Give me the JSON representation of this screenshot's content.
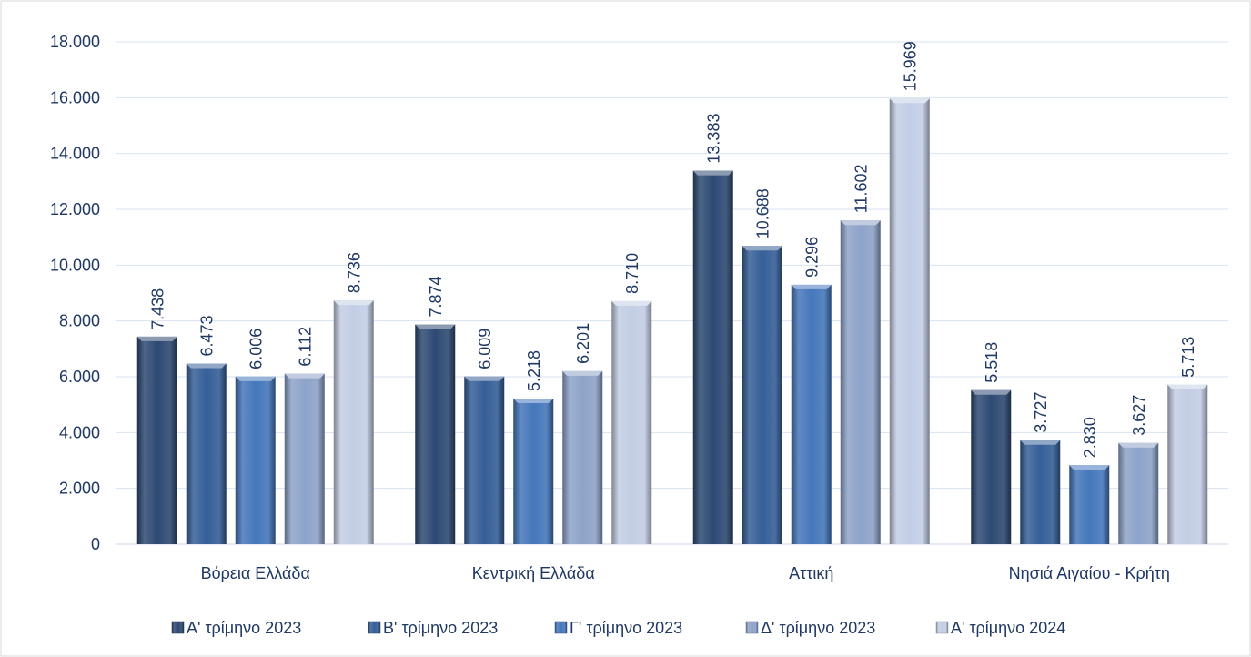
{
  "chart_data": {
    "type": "bar",
    "title": "",
    "xlabel": "",
    "ylabel": "",
    "categories": [
      "Βόρεια Ελλάδα",
      "Κεντρική Ελλάδα",
      "Αττική",
      "Νησιά Αιγαίου - Κρήτη"
    ],
    "series": [
      {
        "name": "Α' τρίμηνο 2023",
        "values": [
          7438,
          7874,
          13383,
          5518
        ],
        "labels": [
          "7.438",
          "7.874",
          "13.383",
          "5.518"
        ],
        "color": "#2e4a73"
      },
      {
        "name": "Β' τρίμηνο 2023",
        "values": [
          6473,
          6009,
          10688,
          3727
        ],
        "labels": [
          "6.473",
          "6.009",
          "10.688",
          "3.727"
        ],
        "color": "#365f98"
      },
      {
        "name": "Γ' τρίμηνο 2023",
        "values": [
          6006,
          5218,
          9296,
          2830
        ],
        "labels": [
          "6.006",
          "5.218",
          "9.296",
          "2.830"
        ],
        "color": "#4577bb"
      },
      {
        "name": "Δ' τρίμηνο 2023",
        "values": [
          6112,
          6201,
          11602,
          3627
        ],
        "labels": [
          "6.112",
          "6.201",
          "11.602",
          "3.627"
        ],
        "color": "#8ea3c9"
      },
      {
        "name": "Α' τρίμηνο 2024",
        "values": [
          8736,
          8710,
          15969,
          5713
        ],
        "labels": [
          "8.736",
          "8.710",
          "15.969",
          "5.713"
        ],
        "color": "#c3cde4"
      }
    ],
    "yticks": [
      0,
      2000,
      4000,
      6000,
      8000,
      10000,
      12000,
      14000,
      16000,
      18000
    ],
    "ytick_labels": [
      "0",
      "2.000",
      "4.000",
      "6.000",
      "8.000",
      "10.000",
      "12.000",
      "14.000",
      "16.000",
      "18.000"
    ],
    "ylim": [
      0,
      18000
    ],
    "grid": true,
    "legend": "bottom",
    "colors": {
      "text": "#1f3864",
      "grid": "#d9e2f0",
      "border": "#d9d9d9"
    }
  }
}
